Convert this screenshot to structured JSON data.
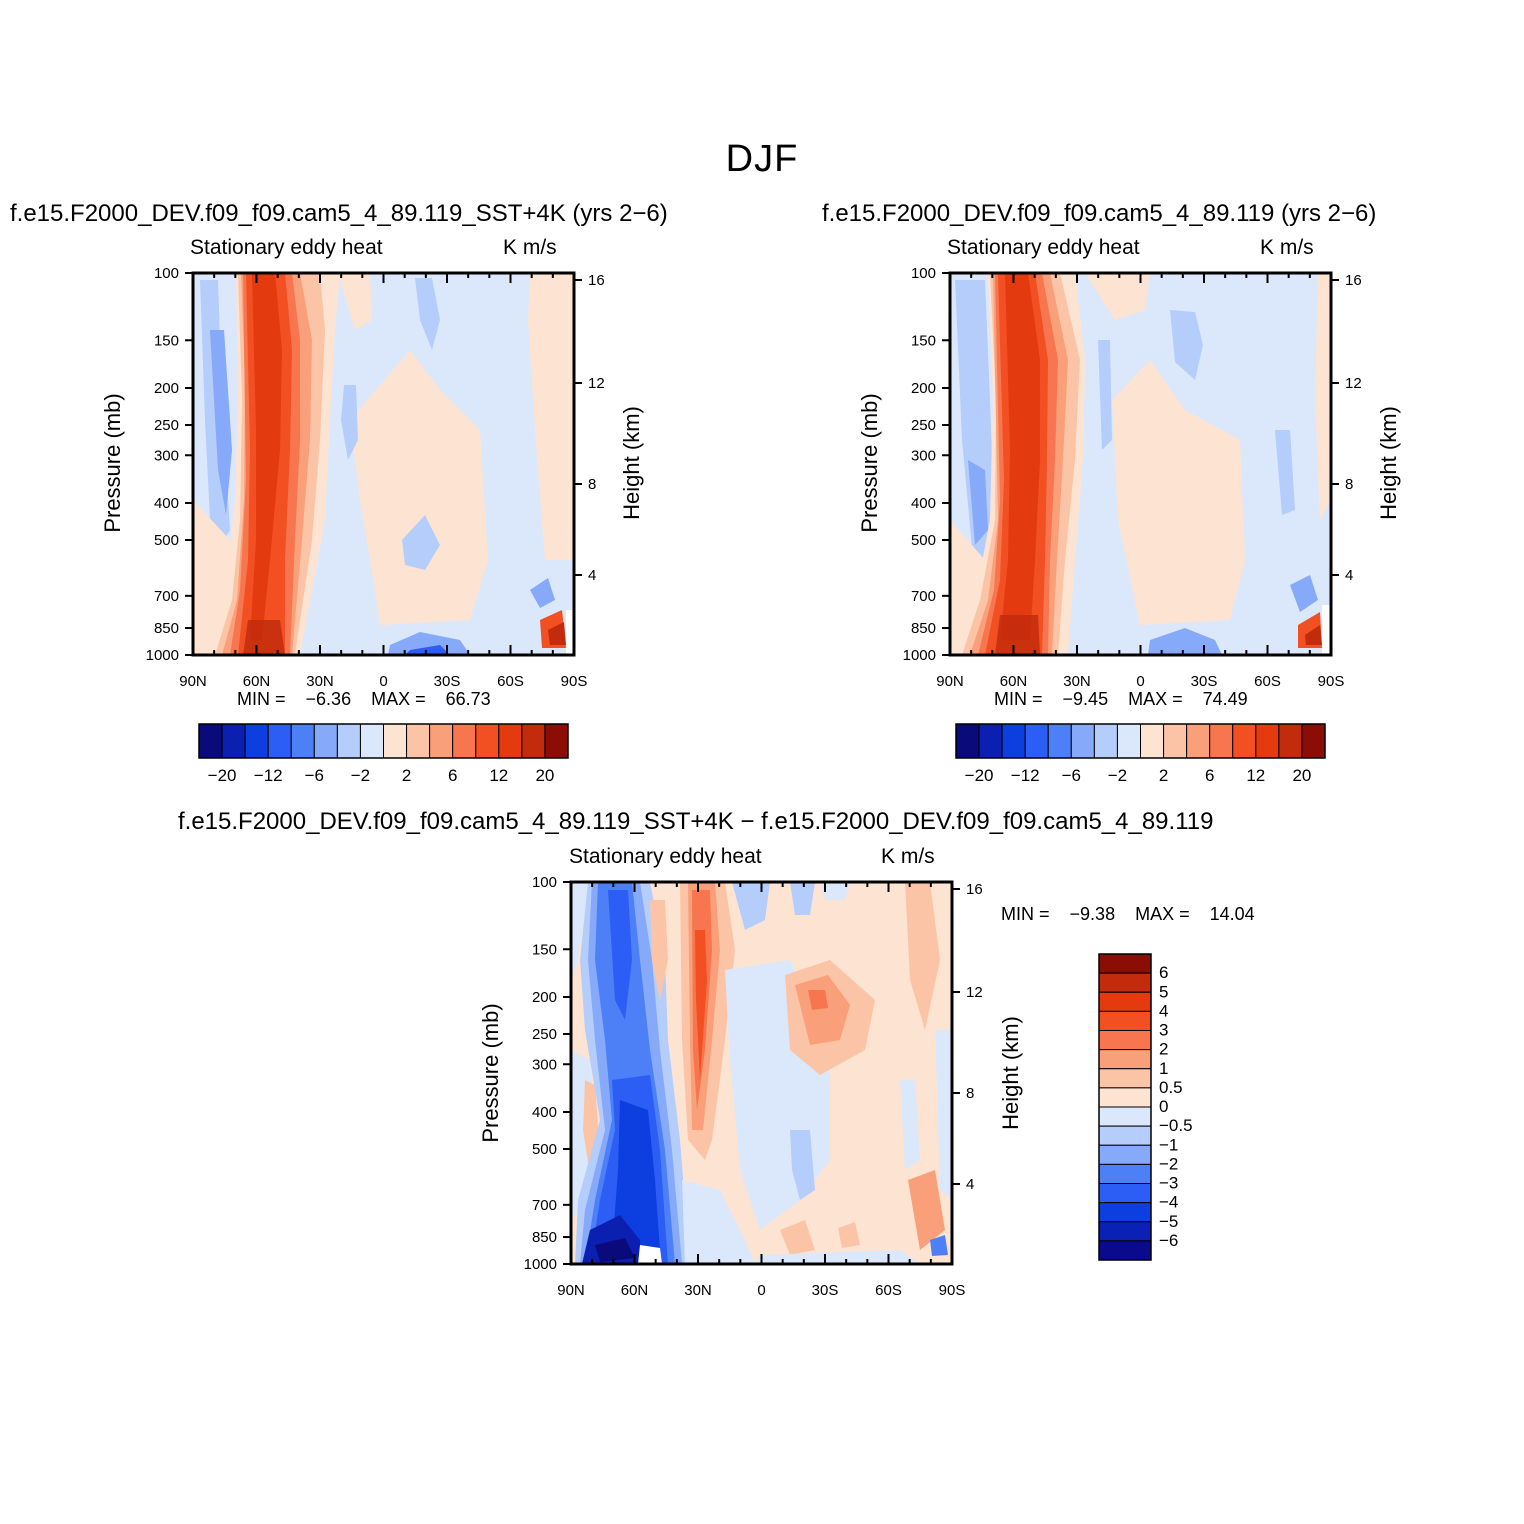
{
  "figure": {
    "title": "DJF"
  },
  "colors": {
    "panel_scale": [
      "#0a0a7a",
      "#0b20b0",
      "#0d3fe0",
      "#2c5ef5",
      "#4d7ff7",
      "#86a9f9",
      "#b5cdfb",
      "#dbe8fc",
      "#fde4d2",
      "#fcc4a6",
      "#f9a07a",
      "#f7764f",
      "#f24f23",
      "#e43a10",
      "#c22b0c",
      "#8c0c06"
    ],
    "diff_scale": [
      "#0a0a8c",
      "#0b20b5",
      "#0d3fe0",
      "#2c5ef5",
      "#4d7ff7",
      "#86a9f9",
      "#b5cdfb",
      "#dbe8fc",
      "#fde4d2",
      "#fcc4a6",
      "#f9a07a",
      "#f7764f",
      "#f24f23",
      "#e43a10",
      "#c22b0c",
      "#8c0c06"
    ]
  },
  "chart_data": [
    {
      "id": "panel-left",
      "type": "heatmap",
      "title": "f.e15.F2000_DEV.f09_f09.cam5_4_89.119_SST+4K (yrs 2−6)",
      "field_label": "Stationary eddy heat",
      "units": "K m/s",
      "xlabel": "",
      "ylabel": "Pressure (mb)",
      "ylabel_right": "Height (km)",
      "x_ticks": [
        "90N",
        "60N",
        "30N",
        "0",
        "30S",
        "60S",
        "90S"
      ],
      "x_values": [
        -90,
        -60,
        -30,
        0,
        30,
        60,
        90
      ],
      "y_ticks": [
        "100",
        "150",
        "200",
        "250",
        "300",
        "400",
        "500",
        "700",
        "850",
        "1000"
      ],
      "y_values": [
        100,
        150,
        200,
        250,
        300,
        400,
        500,
        700,
        850,
        1000
      ],
      "y_right_ticks": [
        "16",
        "12",
        "8",
        "4"
      ],
      "y_right_values": [
        16,
        12,
        8,
        4
      ],
      "min_label": "MIN =",
      "min_value": "−6.36",
      "max_label": "MAX =",
      "max_value": "66.73",
      "colorbar_labels": [
        "−20",
        "−12",
        "−6",
        "−2",
        "2",
        "6",
        "12",
        "20"
      ],
      "features": [
        {
          "lat": -52,
          "p": 500,
          "value": 60,
          "desc": "strong positive column"
        },
        {
          "lat": -75,
          "p": 300,
          "value": -4,
          "desc": "negative column"
        }
      ]
    },
    {
      "id": "panel-right",
      "type": "heatmap",
      "title": "f.e15.F2000_DEV.f09_f09.cam5_4_89.119 (yrs 2−6)",
      "field_label": "Stationary eddy heat",
      "units": "K m/s",
      "xlabel": "",
      "ylabel": "Pressure (mb)",
      "ylabel_right": "Height (km)",
      "x_ticks": [
        "90N",
        "60N",
        "30N",
        "0",
        "30S",
        "60S",
        "90S"
      ],
      "x_values": [
        -90,
        -60,
        -30,
        0,
        30,
        60,
        90
      ],
      "y_ticks": [
        "100",
        "150",
        "200",
        "250",
        "300",
        "400",
        "500",
        "700",
        "850",
        "1000"
      ],
      "y_values": [
        100,
        150,
        200,
        250,
        300,
        400,
        500,
        700,
        850,
        1000
      ],
      "y_right_ticks": [
        "16",
        "12",
        "8",
        "4"
      ],
      "y_right_values": [
        16,
        12,
        8,
        4
      ],
      "min_label": "MIN =",
      "min_value": "−9.45",
      "max_label": "MAX =",
      "max_value": "74.49",
      "colorbar_labels": [
        "−20",
        "−12",
        "−6",
        "−2",
        "2",
        "6",
        "12",
        "20"
      ],
      "features": [
        {
          "lat": -55,
          "p": 500,
          "value": 70,
          "desc": "strong positive column"
        },
        {
          "lat": -78,
          "p": 300,
          "value": -5,
          "desc": "negative column"
        }
      ]
    },
    {
      "id": "panel-diff",
      "type": "heatmap",
      "title": "f.e15.F2000_DEV.f09_f09.cam5_4_89.119_SST+4K − f.e15.F2000_DEV.f09_f09.cam5_4_89.119",
      "field_label": "Stationary eddy heat",
      "units": "K m/s",
      "xlabel": "",
      "ylabel": "Pressure (mb)",
      "ylabel_right": "Height (km)",
      "x_ticks": [
        "90N",
        "60N",
        "30N",
        "0",
        "30S",
        "60S",
        "90S"
      ],
      "x_values": [
        -90,
        -60,
        -30,
        0,
        30,
        60,
        90
      ],
      "y_ticks": [
        "100",
        "150",
        "200",
        "250",
        "300",
        "400",
        "500",
        "700",
        "850",
        "1000"
      ],
      "y_values": [
        100,
        150,
        200,
        250,
        300,
        400,
        500,
        700,
        850,
        1000
      ],
      "y_right_ticks": [
        "16",
        "12",
        "8",
        "4"
      ],
      "y_right_values": [
        16,
        12,
        8,
        4
      ],
      "min_label": "MIN =",
      "min_value": "−9.38",
      "max_label": "MAX =",
      "max_value": "14.04",
      "colorbar_labels": [
        "6",
        "5",
        "4",
        "3",
        "2",
        "1",
        "0.5",
        "0",
        "−0.5",
        "−1",
        "−2",
        "−3",
        "−4",
        "−5",
        "−6"
      ],
      "features": [
        {
          "lat": -65,
          "p": 700,
          "value": -6,
          "desc": "negative column"
        },
        {
          "lat": -30,
          "p": 300,
          "value": 4,
          "desc": "positive column"
        },
        {
          "lat": 25,
          "p": 200,
          "value": 3,
          "desc": "positive blob"
        }
      ]
    }
  ]
}
